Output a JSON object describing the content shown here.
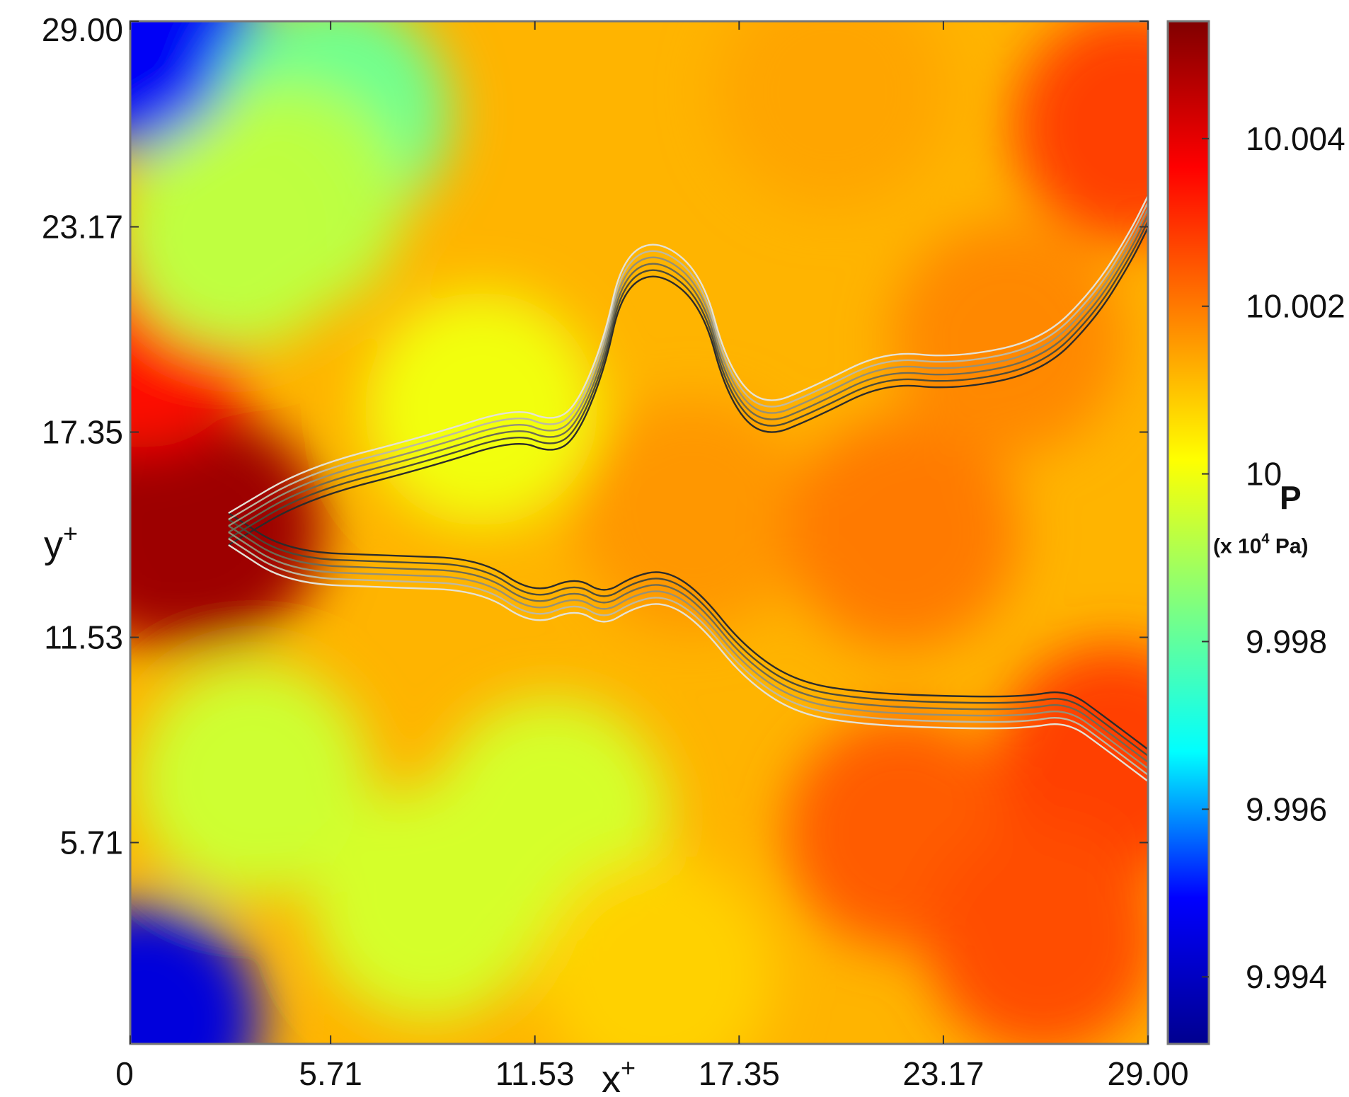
{
  "chart_data": {
    "type": "heatmap",
    "title": "",
    "xlabel": "x",
    "xlabel_superscript": "+",
    "ylabel": "y",
    "ylabel_superscript": "+",
    "xlim": [
      0,
      29.0
    ],
    "ylim": [
      0,
      29.0
    ],
    "x_ticks": [
      "0",
      "5.71",
      "11.53",
      "17.35",
      "23.17",
      "29.00"
    ],
    "x_tick_values": [
      0,
      5.71,
      11.53,
      17.35,
      23.17,
      29.0
    ],
    "y_ticks": [
      "5.71",
      "11.53",
      "17.35",
      "23.17",
      "29.00"
    ],
    "y_tick_values": [
      5.71,
      11.53,
      17.35,
      23.17,
      29.0
    ],
    "colorbar": {
      "quantity": "P",
      "unit_prefix": "(x 10",
      "unit_exponent": "4",
      "unit_suffix": " Pa)",
      "range": [
        9.9932,
        10.0054
      ],
      "ticks": [
        "9.994",
        "9.996",
        "9.998",
        "10",
        "10.002",
        "10.004"
      ],
      "tick_values": [
        9.994,
        9.996,
        9.998,
        10.0,
        10.002,
        10.004
      ],
      "colormap": "jet",
      "colors": [
        "#00008f",
        "#0000ff",
        "#00ffff",
        "#7fff7f",
        "#ffff00",
        "#ff8000",
        "#ff0000",
        "#800000"
      ]
    },
    "pressure_features": [
      {
        "x": 1.0,
        "y": 14.5,
        "value": 10.0048
      },
      {
        "x": 2.2,
        "y": 14.6,
        "value": 10.005
      },
      {
        "x": 0.3,
        "y": 20.2,
        "value": 10.0035
      },
      {
        "x": 0.5,
        "y": 28.6,
        "value": 9.9948
      },
      {
        "x": 0.4,
        "y": 0.7,
        "value": 9.9944
      },
      {
        "x": 5.8,
        "y": 26.4,
        "value": 9.9982
      },
      {
        "x": 4.5,
        "y": 24.0,
        "value": 9.9992
      },
      {
        "x": 3.0,
        "y": 23.0,
        "value": 9.9993
      },
      {
        "x": 3.5,
        "y": 7.5,
        "value": 9.9995
      },
      {
        "x": 8.5,
        "y": 4.0,
        "value": 9.9996
      },
      {
        "x": 12.0,
        "y": 6.5,
        "value": 9.9996
      },
      {
        "x": 10.0,
        "y": 18.0,
        "value": 10.0
      },
      {
        "x": 16.0,
        "y": 15.0,
        "value": 10.0016
      },
      {
        "x": 22.0,
        "y": 14.5,
        "value": 10.002
      },
      {
        "x": 25.0,
        "y": 20.0,
        "value": 10.0018
      },
      {
        "x": 28.5,
        "y": 26.0,
        "value": 10.0028
      },
      {
        "x": 22.0,
        "y": 6.0,
        "value": 10.0024
      },
      {
        "x": 28.0,
        "y": 8.0,
        "value": 10.0028
      },
      {
        "x": 26.0,
        "y": 3.0,
        "value": 10.0026
      },
      {
        "x": 20.0,
        "y": 27.0,
        "value": 10.0014
      },
      {
        "x": 15.0,
        "y": 2.0,
        "value": 10.0008
      }
    ],
    "interface_contours": {
      "line_count": 6,
      "upper": [
        [
          2.8,
          14.6
        ],
        [
          5.0,
          15.9
        ],
        [
          8.5,
          16.8
        ],
        [
          11.0,
          17.6
        ],
        [
          12.0,
          17.2
        ],
        [
          12.7,
          17.6
        ],
        [
          13.5,
          19.5
        ],
        [
          14.0,
          21.8
        ],
        [
          15.0,
          22.4
        ],
        [
          16.3,
          21.4
        ],
        [
          17.0,
          18.8
        ],
        [
          18.0,
          17.6
        ],
        [
          19.5,
          18.2
        ],
        [
          21.5,
          19.2
        ],
        [
          23.5,
          19.0
        ],
        [
          26.0,
          19.5
        ],
        [
          27.5,
          21.0
        ],
        [
          28.5,
          22.6
        ],
        [
          29.0,
          23.6
        ]
      ],
      "lower": [
        [
          2.8,
          14.6
        ],
        [
          4.5,
          13.5
        ],
        [
          7.5,
          13.4
        ],
        [
          10.0,
          13.3
        ],
        [
          11.5,
          12.3
        ],
        [
          12.7,
          12.8
        ],
        [
          13.5,
          12.3
        ],
        [
          14.3,
          12.8
        ],
        [
          15.2,
          13.0
        ],
        [
          16.2,
          12.4
        ],
        [
          17.5,
          10.8
        ],
        [
          19.0,
          9.8
        ],
        [
          21.0,
          9.5
        ],
        [
          23.5,
          9.4
        ],
        [
          25.5,
          9.4
        ],
        [
          26.7,
          9.6
        ],
        [
          27.8,
          8.8
        ],
        [
          29.0,
          7.9
        ]
      ]
    }
  }
}
